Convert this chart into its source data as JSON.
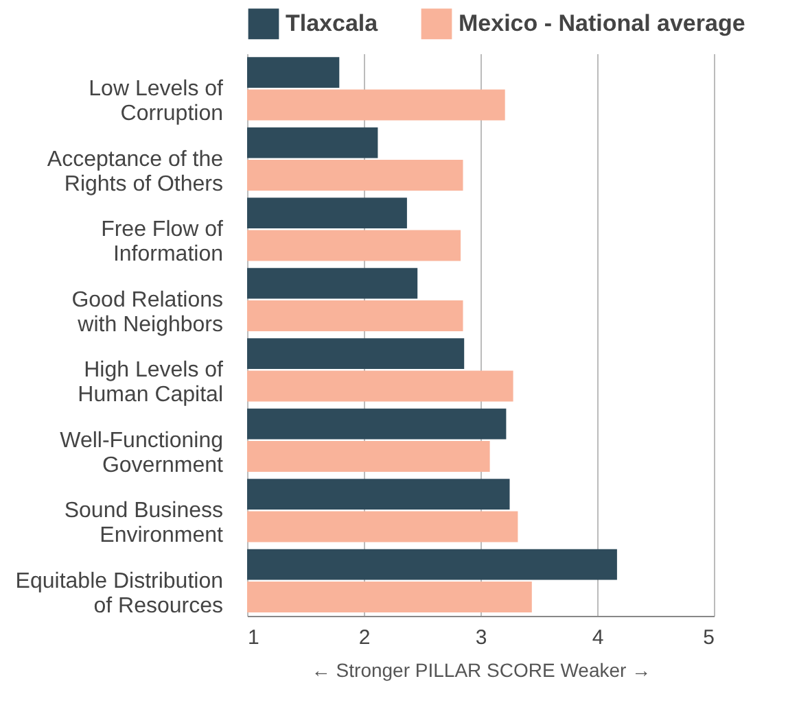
{
  "chart_data": {
    "type": "bar",
    "orientation": "horizontal",
    "xlabel": "← Stronger   PILLAR SCORE   Weaker →",
    "categories": [
      "Low Levels of Corruption",
      "Acceptance of the Rights of Others",
      "Free Flow of Information",
      "Good Relations with Neighbors",
      "High Levels of Human Capital",
      "Well-Functioning Government",
      "Sound Business Environment",
      "Equitable Distribution of Resources"
    ],
    "series": [
      {
        "name": "Tlaxcala",
        "color": "#2e4b5b",
        "values": [
          1.79,
          2.12,
          2.37,
          2.46,
          2.86,
          3.22,
          3.25,
          4.17
        ]
      },
      {
        "name": "Mexico - National average",
        "color": "#f9b39a",
        "values": [
          3.21,
          2.85,
          2.83,
          2.85,
          3.28,
          3.08,
          3.32,
          3.44
        ]
      }
    ],
    "xlim": [
      1,
      5
    ],
    "xticks": [
      1,
      2,
      3,
      4,
      5
    ],
    "grid": "x",
    "legend": "top"
  }
}
